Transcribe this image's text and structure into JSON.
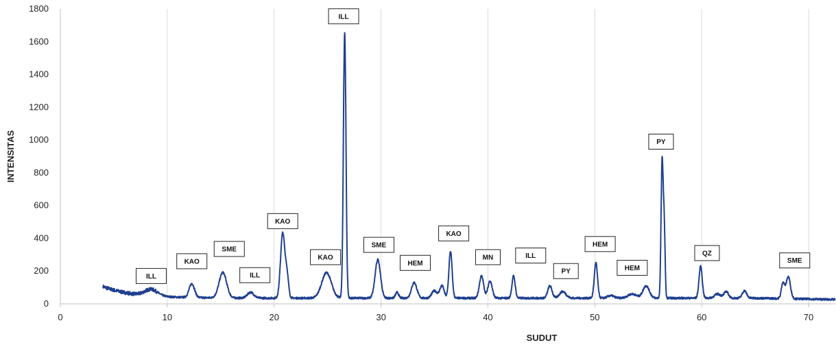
{
  "chart_data": {
    "type": "line",
    "xlabel": "SUDUT",
    "ylabel": "INTENSITAS",
    "xlim": [
      0,
      72.5
    ],
    "ylim": [
      0,
      1800
    ],
    "xticks": [
      0,
      10,
      20,
      30,
      40,
      50,
      60,
      70
    ],
    "yticks": [
      0,
      200,
      400,
      600,
      800,
      1000,
      1200,
      1400,
      1600,
      1800
    ],
    "grid": "vertical",
    "line_color": "#1f3f8f",
    "peaks": [
      {
        "x": 8.5,
        "y": 75,
        "w": 0.6
      },
      {
        "x": 12.3,
        "y": 120,
        "w": 0.25
      },
      {
        "x": 15.2,
        "y": 190,
        "w": 0.35
      },
      {
        "x": 17.8,
        "y": 70,
        "w": 0.3
      },
      {
        "x": 20.8,
        "y": 430,
        "w": 0.2
      },
      {
        "x": 21.2,
        "y": 170,
        "w": 0.15
      },
      {
        "x": 24.9,
        "y": 190,
        "w": 0.45
      },
      {
        "x": 26.6,
        "y": 1660,
        "w": 0.12
      },
      {
        "x": 29.7,
        "y": 270,
        "w": 0.25
      },
      {
        "x": 31.5,
        "y": 70,
        "w": 0.15
      },
      {
        "x": 33.1,
        "y": 130,
        "w": 0.25
      },
      {
        "x": 35.0,
        "y": 80,
        "w": 0.25
      },
      {
        "x": 35.7,
        "y": 110,
        "w": 0.2
      },
      {
        "x": 36.5,
        "y": 320,
        "w": 0.15
      },
      {
        "x": 39.4,
        "y": 170,
        "w": 0.2
      },
      {
        "x": 40.2,
        "y": 140,
        "w": 0.2
      },
      {
        "x": 42.4,
        "y": 170,
        "w": 0.15
      },
      {
        "x": 45.8,
        "y": 110,
        "w": 0.2
      },
      {
        "x": 47.0,
        "y": 75,
        "w": 0.3
      },
      {
        "x": 50.1,
        "y": 250,
        "w": 0.15
      },
      {
        "x": 51.5,
        "y": 50,
        "w": 0.3
      },
      {
        "x": 53.5,
        "y": 60,
        "w": 0.4
      },
      {
        "x": 54.8,
        "y": 110,
        "w": 0.3
      },
      {
        "x": 56.3,
        "y": 880,
        "w": 0.1
      },
      {
        "x": 56.5,
        "y": 430,
        "w": 0.08
      },
      {
        "x": 59.9,
        "y": 230,
        "w": 0.15
      },
      {
        "x": 61.5,
        "y": 60,
        "w": 0.3
      },
      {
        "x": 62.3,
        "y": 75,
        "w": 0.2
      },
      {
        "x": 64.0,
        "y": 80,
        "w": 0.2
      },
      {
        "x": 67.6,
        "y": 130,
        "w": 0.15
      },
      {
        "x": 68.1,
        "y": 170,
        "w": 0.2
      }
    ],
    "annotations": [
      {
        "text": "ILL",
        "x": 8.5,
        "y": 170
      },
      {
        "text": "KAO",
        "x": 12.3,
        "y": 260
      },
      {
        "text": "SME",
        "x": 15.8,
        "y": 335
      },
      {
        "text": "ILL",
        "x": 18.2,
        "y": 175
      },
      {
        "text": "KAO",
        "x": 20.8,
        "y": 505
      },
      {
        "text": "KAO",
        "x": 24.8,
        "y": 285
      },
      {
        "text": "ILL",
        "x": 26.5,
        "y": 1755
      },
      {
        "text": "SME",
        "x": 29.8,
        "y": 360
      },
      {
        "text": "HEM",
        "x": 33.2,
        "y": 250
      },
      {
        "text": "KAO",
        "x": 36.8,
        "y": 430
      },
      {
        "text": "MN",
        "x": 40.0,
        "y": 285
      },
      {
        "text": "ILL",
        "x": 44.0,
        "y": 295
      },
      {
        "text": "PY",
        "x": 47.3,
        "y": 200
      },
      {
        "text": "HEM",
        "x": 50.5,
        "y": 365
      },
      {
        "text": "HEM",
        "x": 53.5,
        "y": 220
      },
      {
        "text": "PY",
        "x": 56.2,
        "y": 990
      },
      {
        "text": "QZ",
        "x": 60.5,
        "y": 310
      },
      {
        "text": "SME",
        "x": 68.7,
        "y": 265
      }
    ]
  }
}
